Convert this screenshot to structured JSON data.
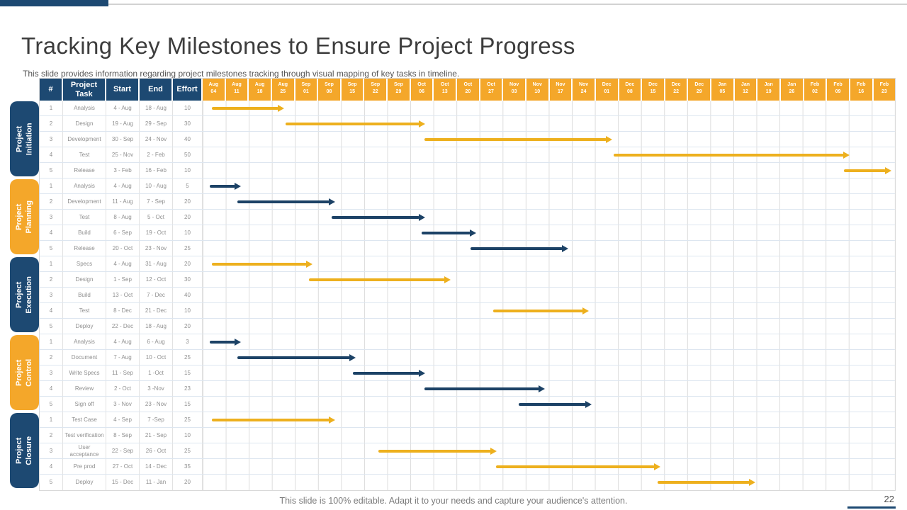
{
  "slide": {
    "title": "Tracking Key Milestones to Ensure Project Progress",
    "subtitle": "This slide provides information regarding project milestones tracking through visual mapping of key tasks in timeline.",
    "footer_note": "This slide is 100% editable. Adapt it to your needs and capture your audience's attention.",
    "page_number": "22"
  },
  "colors": {
    "navy": "#1D4972",
    "navy_bar": "#1C4266",
    "amber": "#F4A72A",
    "amber_bar": "#EDB01E",
    "top_strip_gray": "#D2D2D2",
    "grid_line": "#DCDCDC",
    "row_line": "#DDE6F0",
    "cell_text": "#8F8F8F"
  },
  "table": {
    "columns": [
      "#",
      "Project Task",
      "Start",
      "End",
      "Effort"
    ]
  },
  "chart_data": {
    "type": "gantt",
    "weeks_total": 30,
    "timeline_weeks": [
      "Aug 04",
      "Aug 11",
      "Aug 18",
      "Aug 25",
      "Sep 01",
      "Sep 08",
      "Sep 15",
      "Sep 22",
      "Sep 29",
      "Oct 06",
      "Oct 13",
      "Oct 20",
      "Oct 27",
      "Nov 03",
      "Nov 10",
      "Nov 17",
      "Nov 24",
      "Dec 01",
      "Dec 08",
      "Dec 15",
      "Dec 22",
      "Dec 29",
      "Jan 05",
      "Jan 12",
      "Jan 19",
      "Jan 26",
      "Feb 02",
      "Feb 09",
      "Feb 16",
      "Feb 23"
    ],
    "sections": [
      {
        "name": "Project Initiation",
        "label_lines": [
          "Project",
          "Initiation"
        ],
        "label_color": "navy",
        "bar_color": "amber_bar",
        "tasks": [
          {
            "num": "1",
            "task": "Analysis",
            "start": "4 - Aug",
            "end": "18 - Aug",
            "effort": "10",
            "bar": {
              "from_week": 0.4,
              "to_week": 3.3
            }
          },
          {
            "num": "2",
            "task": "Design",
            "start": "19 - Aug",
            "end": "29 - Sep",
            "effort": "30",
            "bar": {
              "from_week": 3.6,
              "to_week": 9.4
            }
          },
          {
            "num": "3",
            "task": "Development",
            "start": "30 - Sep",
            "end": "24 - Nov",
            "effort": "40",
            "bar": {
              "from_week": 9.6,
              "to_week": 17.5
            }
          },
          {
            "num": "4",
            "task": "Test",
            "start": "25 - Nov",
            "end": "2 - Feb",
            "effort": "50",
            "bar": {
              "from_week": 17.8,
              "to_week": 27.8
            }
          },
          {
            "num": "5",
            "task": "Release",
            "start": "3 - Feb",
            "end": "16 - Feb",
            "effort": "10",
            "bar": {
              "from_week": 27.8,
              "to_week": 29.6
            }
          }
        ]
      },
      {
        "name": "Project Planning",
        "label_lines": [
          "Project",
          "Planning"
        ],
        "label_color": "amber",
        "bar_color": "navy_bar",
        "tasks": [
          {
            "num": "1",
            "task": "Analysis",
            "start": "4 - Aug",
            "end": "10 - Aug",
            "effort": "5",
            "bar": {
              "from_week": 0.3,
              "to_week": 1.4
            }
          },
          {
            "num": "2",
            "task": "Development",
            "start": "11 - Aug",
            "end": "7 - Sep",
            "effort": "20",
            "bar": {
              "from_week": 1.5,
              "to_week": 5.5
            }
          },
          {
            "num": "3",
            "task": "Test",
            "start": "8 - Aug",
            "end": "5 - Oct",
            "effort": "20",
            "bar": {
              "from_week": 5.6,
              "to_week": 9.4
            }
          },
          {
            "num": "4",
            "task": "Build",
            "start": "6 - Sep",
            "end": "19 - Oct",
            "effort": "10",
            "bar": {
              "from_week": 9.5,
              "to_week": 11.6
            }
          },
          {
            "num": "5",
            "task": "Release",
            "start": "20 - Oct",
            "end": "23 - Nov",
            "effort": "25",
            "bar": {
              "from_week": 11.6,
              "to_week": 15.6
            }
          }
        ]
      },
      {
        "name": "Project Execution",
        "label_lines": [
          "Project",
          "Execution"
        ],
        "label_color": "navy",
        "bar_color": "amber_bar",
        "tasks": [
          {
            "num": "1",
            "task": "Specs",
            "start": "4 - Aug",
            "end": "31 - Aug",
            "effort": "20",
            "bar": {
              "from_week": 0.4,
              "to_week": 4.5
            }
          },
          {
            "num": "2",
            "task": "Design",
            "start": "1 - Sep",
            "end": "12 - Oct",
            "effort": "30",
            "bar": {
              "from_week": 4.6,
              "to_week": 10.5
            }
          },
          {
            "num": "3",
            "task": "Build",
            "start": "13 - Oct",
            "end": "7 - Dec",
            "effort": "40",
            "bar": null
          },
          {
            "num": "4",
            "task": "Test",
            "start": "8 - Dec",
            "end": "21 - Dec",
            "effort": "10",
            "bar": {
              "from_week": 12.6,
              "to_week": 16.5
            }
          },
          {
            "num": "5",
            "task": "Deploy",
            "start": "22 - Dec",
            "end": "18 - Aug",
            "effort": "20",
            "bar": null
          }
        ]
      },
      {
        "name": "Project Control",
        "label_lines": [
          "Project",
          "Control"
        ],
        "label_color": "amber",
        "bar_color": "navy_bar",
        "tasks": [
          {
            "num": "1",
            "task": "Analysis",
            "start": "4 - Aug",
            "end": "6 - Aug",
            "effort": "3",
            "bar": {
              "from_week": 0.3,
              "to_week": 1.4
            }
          },
          {
            "num": "2",
            "task": "Document",
            "start": "7 - Aug",
            "end": "10 - Oct",
            "effort": "25",
            "bar": {
              "from_week": 1.5,
              "to_week": 6.4
            }
          },
          {
            "num": "3",
            "task": "Write Specs",
            "start": "11 - Sep",
            "end": "1 -Oct",
            "effort": "15",
            "bar": {
              "from_week": 6.5,
              "to_week": 9.4
            }
          },
          {
            "num": "4",
            "task": "Review",
            "start": "2 - Oct",
            "end": "3 -Nov",
            "effort": "23",
            "bar": {
              "from_week": 9.6,
              "to_week": 14.6
            }
          },
          {
            "num": "5",
            "task": "Sign off",
            "start": "3 - Nov",
            "end": "23 - Nov",
            "effort": "15",
            "bar": {
              "from_week": 13.7,
              "to_week": 16.6
            }
          }
        ]
      },
      {
        "name": "Project Closure",
        "label_lines": [
          "Project",
          "Closure"
        ],
        "label_color": "navy",
        "bar_color": "amber_bar",
        "tasks": [
          {
            "num": "1",
            "task": "Test Case",
            "start": "4 - Sep",
            "end": "7 -Sep",
            "effort": "25",
            "bar": {
              "from_week": 0.4,
              "to_week": 5.5
            }
          },
          {
            "num": "2",
            "task": "Test verification",
            "start": "8 - Sep",
            "end": "21 - Sep",
            "effort": "10",
            "bar": null
          },
          {
            "num": "3",
            "task": "User acceptance",
            "start": "22 - Sep",
            "end": "26 - Oct",
            "effort": "25",
            "bar": {
              "from_week": 7.6,
              "to_week": 12.5
            }
          },
          {
            "num": "4",
            "task": "Pre prod",
            "start": "27 - Oct",
            "end": "14 - Dec",
            "effort": "35",
            "bar": {
              "from_week": 12.7,
              "to_week": 19.6
            }
          },
          {
            "num": "5",
            "task": "Deploy",
            "start": "15 - Dec",
            "end": "11 - Jan",
            "effort": "20",
            "bar": {
              "from_week": 19.7,
              "to_week": 23.7
            }
          }
        ]
      }
    ]
  }
}
